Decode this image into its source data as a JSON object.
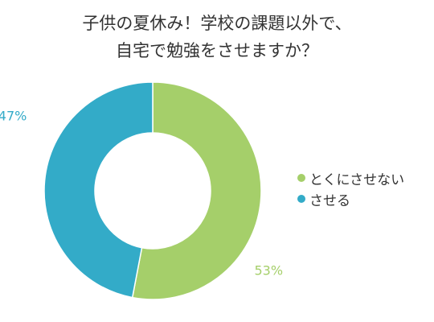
{
  "chart_data": {
    "type": "pie",
    "title_lines": [
      "子供の夏休み！学校の課題以外で、",
      "自宅で勉強をさせますか？"
    ],
    "slices": [
      {
        "label": "とくにさせない",
        "value": 53,
        "value_label": "53%",
        "color": "#a5cf6a"
      },
      {
        "label": "させる",
        "value": 47,
        "value_label": "47%",
        "color": "#33abc8"
      }
    ],
    "legend_position": "right",
    "donut": true
  }
}
